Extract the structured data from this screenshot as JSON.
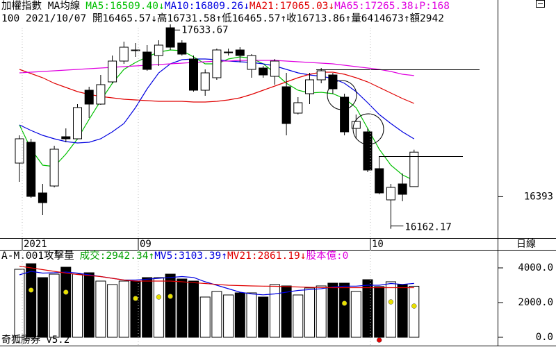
{
  "period": "日線",
  "footer": "奇狐勝券 v5.2",
  "chart_data": [
    {
      "type": "candlestick",
      "title": "加權指數 MA均線",
      "info": "100 2021/10/07 開16465.57↓高16731.58↑低16465.57↑收16713.86↑量6414673↑額2942",
      "extra_label": "P:168",
      "extra_label_color": "#e000e0",
      "high_label": "17633.67",
      "low_label": "16162.17",
      "categories": [
        "2021",
        null,
        null,
        null,
        null,
        null,
        null,
        null,
        null,
        null,
        "09",
        null,
        null,
        null,
        null,
        null,
        null,
        null,
        null,
        null,
        null,
        null,
        null,
        null,
        null,
        null,
        null,
        null,
        null,
        null,
        "10",
        null,
        null,
        null,
        null
      ],
      "open": [
        16635,
        16785,
        16420,
        16470,
        16825,
        16810,
        17160,
        17060,
        17220,
        17370,
        17450,
        17435,
        17410,
        17610,
        17500,
        17385,
        17160,
        17250,
        17430,
        17450,
        17310,
        17320,
        17260,
        17185,
        16995,
        17135,
        17235,
        17270,
        17110,
        16885,
        16860,
        16595,
        16370,
        16485,
        16465.57
      ],
      "high": [
        16835,
        16810,
        16485,
        16760,
        16885,
        17060,
        17185,
        17270,
        17410,
        17510,
        17500,
        17485,
        17520,
        17633.67,
        17520,
        17410,
        17310,
        17460,
        17460,
        17470,
        17420,
        17335,
        17385,
        17285,
        17110,
        17285,
        17320,
        17285,
        17135,
        16985,
        16885,
        16685,
        16485,
        16560,
        16731.58
      ],
      "low": [
        16500,
        16385,
        16260,
        16460,
        16785,
        16805,
        16960,
        17055,
        17210,
        17350,
        17400,
        17300,
        17335,
        17450,
        17410,
        17150,
        17120,
        17235,
        17410,
        17360,
        17250,
        17250,
        17200,
        16835,
        16985,
        17060,
        17210,
        17135,
        16835,
        16810,
        16570,
        16410,
        16162.17,
        16360,
        16465.57
      ],
      "close": [
        16810,
        16395,
        16350,
        16735,
        16810,
        17035,
        17060,
        17200,
        17370,
        17470,
        17445,
        17310,
        17485,
        17470,
        17420,
        17160,
        17285,
        17450,
        17435,
        17410,
        17410,
        17270,
        17370,
        16920,
        17070,
        17235,
        17300,
        17170,
        16860,
        16935,
        16585,
        16420,
        16460,
        16410,
        16713.86
      ],
      "up_color": "#ffffff",
      "down_color": "#000000",
      "series": [
        {
          "label": "MA5:16509.40↓",
          "color": "#00c000",
          "values": [
            16910,
            16735,
            16620,
            16610,
            16700,
            16810,
            16950,
            17085,
            17210,
            17310,
            17360,
            17400,
            17435,
            17450,
            17445,
            17400,
            17350,
            17350,
            17385,
            17400,
            17390,
            17350,
            17285,
            17210,
            17160,
            17140,
            17145,
            17135,
            17100,
            17035,
            16885,
            16735,
            16620,
            16550,
            16509.4
          ]
        },
        {
          "label": "MA10:16809.26↓",
          "color": "#0000e0",
          "values": [
            16910,
            16870,
            16835,
            16810,
            16790,
            16780,
            16785,
            16810,
            16860,
            16920,
            17035,
            17170,
            17285,
            17350,
            17380,
            17385,
            17385,
            17380,
            17370,
            17365,
            17360,
            17350,
            17335,
            17310,
            17285,
            17270,
            17260,
            17245,
            17210,
            17150,
            17070,
            16985,
            16920,
            16860,
            16809.26
          ]
        },
        {
          "label": "MA21:17065.03↓",
          "color": "#e00000",
          "values": [
            17310,
            17280,
            17250,
            17210,
            17180,
            17150,
            17130,
            17115,
            17105,
            17095,
            17090,
            17085,
            17080,
            17080,
            17080,
            17075,
            17075,
            17080,
            17090,
            17105,
            17130,
            17160,
            17190,
            17220,
            17250,
            17275,
            17290,
            17290,
            17275,
            17250,
            17220,
            17180,
            17140,
            17100,
            17065.03
          ]
        },
        {
          "label": "MA65:17265.38↓",
          "color": "#e000e0",
          "values": [
            17285,
            17290,
            17295,
            17300,
            17305,
            17310,
            17315,
            17320,
            17325,
            17330,
            17335,
            17340,
            17345,
            17350,
            17355,
            17360,
            17365,
            17370,
            17370,
            17375,
            17375,
            17375,
            17375,
            17370,
            17365,
            17360,
            17355,
            17350,
            17340,
            17330,
            17320,
            17310,
            17295,
            17275,
            17265.38
          ]
        }
      ],
      "ylim": [
        16100,
        17800
      ],
      "yticks": [
        16393
      ]
    },
    {
      "type": "bar",
      "title": "A-M.001攻擊量",
      "value_label": "成交:2942.34↑",
      "value_label_color": "#00a000",
      "extra_label": "股本億:0",
      "extra_label_color": "#e000e0",
      "values": [
        3920,
        4240,
        3440,
        3640,
        4040,
        3640,
        3720,
        3240,
        3040,
        3240,
        3240,
        3440,
        3440,
        3640,
        3360,
        3240,
        2320,
        2640,
        2440,
        2560,
        2560,
        2320,
        3040,
        2960,
        2440,
        2840,
        2960,
        3120,
        3120,
        2640,
        3320,
        2920,
        3200,
        3040,
        2942.34
      ],
      "series": [
        {
          "label": "MV5:3103.39↑",
          "color": "#0000e0",
          "values": [
            3600,
            3800,
            3700,
            3720,
            3760,
            3700,
            3600,
            3500,
            3400,
            3300,
            3300,
            3350,
            3400,
            3450,
            3500,
            3450,
            3200,
            3000,
            2800,
            2600,
            2500,
            2450,
            2500,
            2600,
            2700,
            2750,
            2800,
            2900,
            2950,
            2950,
            3000,
            3000,
            3100,
            3050,
            3103.39
          ]
        },
        {
          "label": "MV21:2861.19↓",
          "color": "#e00000",
          "values": [
            4100,
            4000,
            3900,
            3800,
            3700,
            3620,
            3560,
            3500,
            3400,
            3300,
            3240,
            3240,
            3240,
            3240,
            3200,
            3150,
            3100,
            3050,
            3000,
            2980,
            2960,
            2950,
            2940,
            2920,
            2900,
            2880,
            2870,
            2860,
            2860,
            2860,
            2860,
            2860,
            2860,
            2860,
            2861.19
          ]
        }
      ],
      "markers": [
        {
          "color": "#e8e000",
          "values": [
            null,
            2720,
            null,
            null,
            2600,
            null,
            null,
            null,
            null,
            null,
            2240,
            null,
            2320,
            2360,
            null,
            null,
            null,
            null,
            null,
            null,
            null,
            null,
            null,
            null,
            null,
            null,
            null,
            null,
            1960,
            null,
            null,
            null,
            2040,
            null,
            1800
          ]
        },
        {
          "color": "#e00000",
          "values": [
            null,
            null,
            null,
            null,
            null,
            null,
            null,
            null,
            null,
            null,
            null,
            null,
            null,
            null,
            null,
            null,
            null,
            null,
            null,
            null,
            null,
            null,
            null,
            null,
            null,
            null,
            null,
            null,
            null,
            null,
            null,
            -160,
            null,
            null,
            null
          ]
        }
      ],
      "ylim": [
        -200,
        4800
      ],
      "yticks": [
        {
          "value": 0,
          "label": "0.0"
        },
        {
          "value": 2000,
          "label": "2000.0"
        },
        {
          "value": 4000,
          "label": "4000.0"
        }
      ]
    }
  ]
}
